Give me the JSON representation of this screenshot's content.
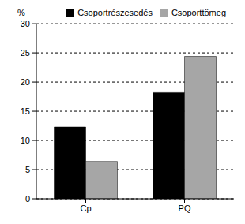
{
  "chart_data": {
    "type": "bar",
    "y_label": "%",
    "categories": [
      "Cp",
      "PQ"
    ],
    "series": [
      {
        "name": "Csoportrészesedés",
        "color": "#000000",
        "values": [
          12.3,
          18.2
        ]
      },
      {
        "name": "Csoporttömeg",
        "color": "#a6a6a6",
        "values": [
          6.4,
          24.4
        ]
      }
    ],
    "ylim": [
      0,
      30
    ],
    "yticks": [
      0,
      5,
      10,
      15,
      20,
      25,
      30
    ],
    "grid": true,
    "legend": "top right"
  }
}
